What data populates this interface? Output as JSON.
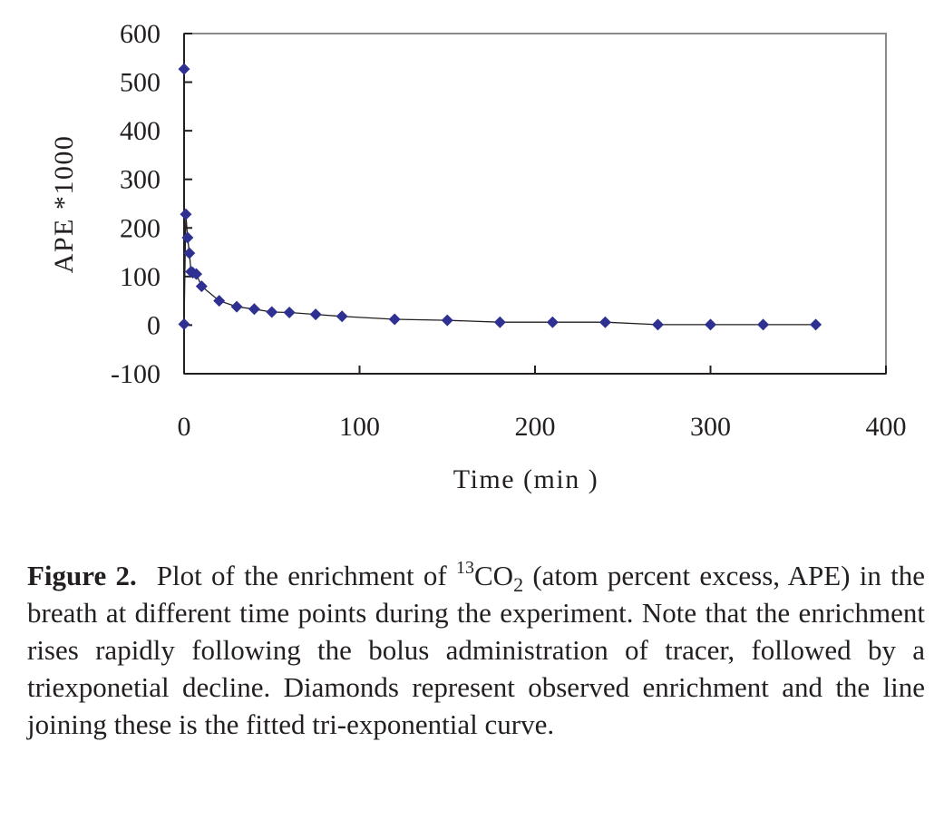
{
  "chart_data": {
    "type": "scatter",
    "xlabel": "Time (min )",
    "ylabel": "APE *1000",
    "xlim": [
      0,
      400
    ],
    "ylim": [
      -100,
      600
    ],
    "xticks": [
      "0",
      "100",
      "200",
      "300",
      "400"
    ],
    "yticks": [
      "-100",
      "0",
      "100",
      "200",
      "300",
      "400",
      "500",
      "600"
    ],
    "grid": false,
    "legend": "none",
    "marker": "diamond",
    "color": "#2e3192",
    "line_color": "#231f20",
    "series": [
      {
        "x": [
          0,
          0,
          1,
          2,
          3,
          4,
          5,
          7,
          10,
          20,
          30,
          40,
          50,
          60,
          75,
          90,
          120,
          150,
          180,
          210,
          240,
          270,
          300,
          330,
          360
        ],
        "y": [
          527,
          2,
          228,
          180,
          148,
          110,
          108,
          105,
          80,
          50,
          38,
          33,
          27,
          26,
          22,
          18,
          12,
          10,
          6,
          6,
          6,
          1,
          1,
          1,
          1
        ]
      }
    ]
  },
  "caption": {
    "label": "Figure 2.",
    "part1": "Plot of the enrichment of ",
    "sup": "13",
    "chem": "CO",
    "sub": "2",
    "part2": " (atom percent excess, APE) in the breath at different time points during the experiment. Note that the enrichment rises rapidly following the bolus administration of tracer, followed by a triexponetial decline. Diamonds represent observed enrichment and the line joining these is the fitted tri-exponential curve."
  }
}
